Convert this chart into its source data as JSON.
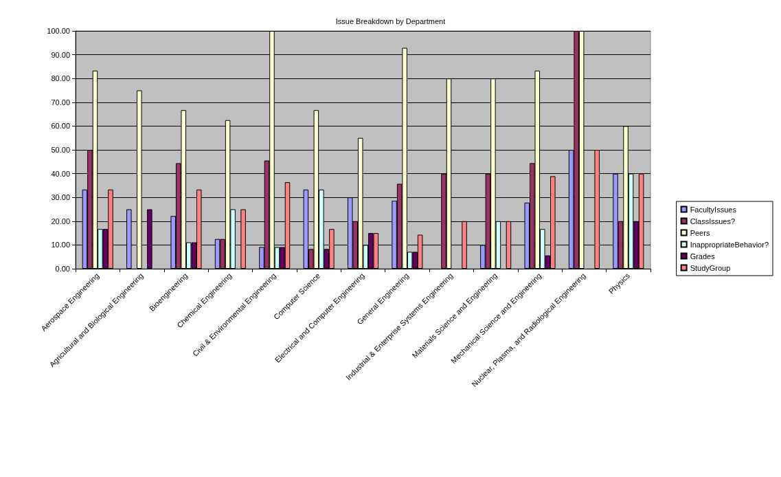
{
  "chart_data": {
    "type": "bar",
    "title": "Issue Breakdown by Department",
    "categories": [
      "Aerospace Engineering",
      "Agricultural and Biological Engineering",
      "Bioengineering",
      "Chemical Engineering",
      "Civil & Environmental Engineering",
      "Computer Science",
      "Electrical and Computer Engineering",
      "General Engineering",
      "Industrial & Enterprise Systems Engineering",
      "Materials Science and Engineering",
      "Mechanical Science and Engineering",
      "Nuclear, Plasma, and Radiological Engineering",
      "Physics"
    ],
    "series": [
      {
        "name": "FacultyIssues",
        "color": "#9999ff",
        "values": [
          33.3,
          25,
          22.2,
          12.5,
          9.1,
          33.3,
          30,
          28.6,
          0,
          10,
          27.8,
          50,
          40
        ]
      },
      {
        "name": "ClassIssues?",
        "color": "#993366",
        "values": [
          50,
          0,
          44.4,
          12.5,
          45.5,
          8.3,
          20,
          35.7,
          40,
          40,
          44.4,
          100,
          20
        ]
      },
      {
        "name": "Peers",
        "color": "#ffffcc",
        "values": [
          83.3,
          75,
          66.7,
          62.5,
          100,
          66.7,
          55,
          92.9,
          80,
          80,
          83.3,
          100,
          60
        ]
      },
      {
        "name": "InappropriateBehavior?",
        "color": "#ccffff",
        "values": [
          16.7,
          0,
          11.1,
          25,
          9.1,
          33.3,
          10,
          7.1,
          0,
          20,
          16.7,
          0,
          40
        ]
      },
      {
        "name": "Grades",
        "color": "#660066",
        "values": [
          16.7,
          25,
          11.1,
          0,
          9.1,
          8.3,
          15,
          7.1,
          0,
          0,
          5.6,
          0,
          20
        ]
      },
      {
        "name": "StudyGroup",
        "color": "#ff8080",
        "values": [
          33.3,
          0,
          33.3,
          25,
          36.4,
          16.7,
          15,
          14.3,
          20,
          20,
          38.9,
          50,
          40
        ]
      }
    ],
    "ylim": [
      0,
      100
    ],
    "yticks": [
      {
        "value": 0,
        "label": "0.00"
      },
      {
        "value": 10,
        "label": "10.00"
      },
      {
        "value": 20,
        "label": "20.00"
      },
      {
        "value": 30,
        "label": "30.00"
      },
      {
        "value": 40,
        "label": "40.00"
      },
      {
        "value": 50,
        "label": "50.00"
      },
      {
        "value": 60,
        "label": "60.00"
      },
      {
        "value": 70,
        "label": "70.00"
      },
      {
        "value": 80,
        "label": "80.00"
      },
      {
        "value": 90,
        "label": "90.00"
      },
      {
        "value": 100,
        "label": "100.00"
      }
    ],
    "grid": "y",
    "legend": "right"
  }
}
